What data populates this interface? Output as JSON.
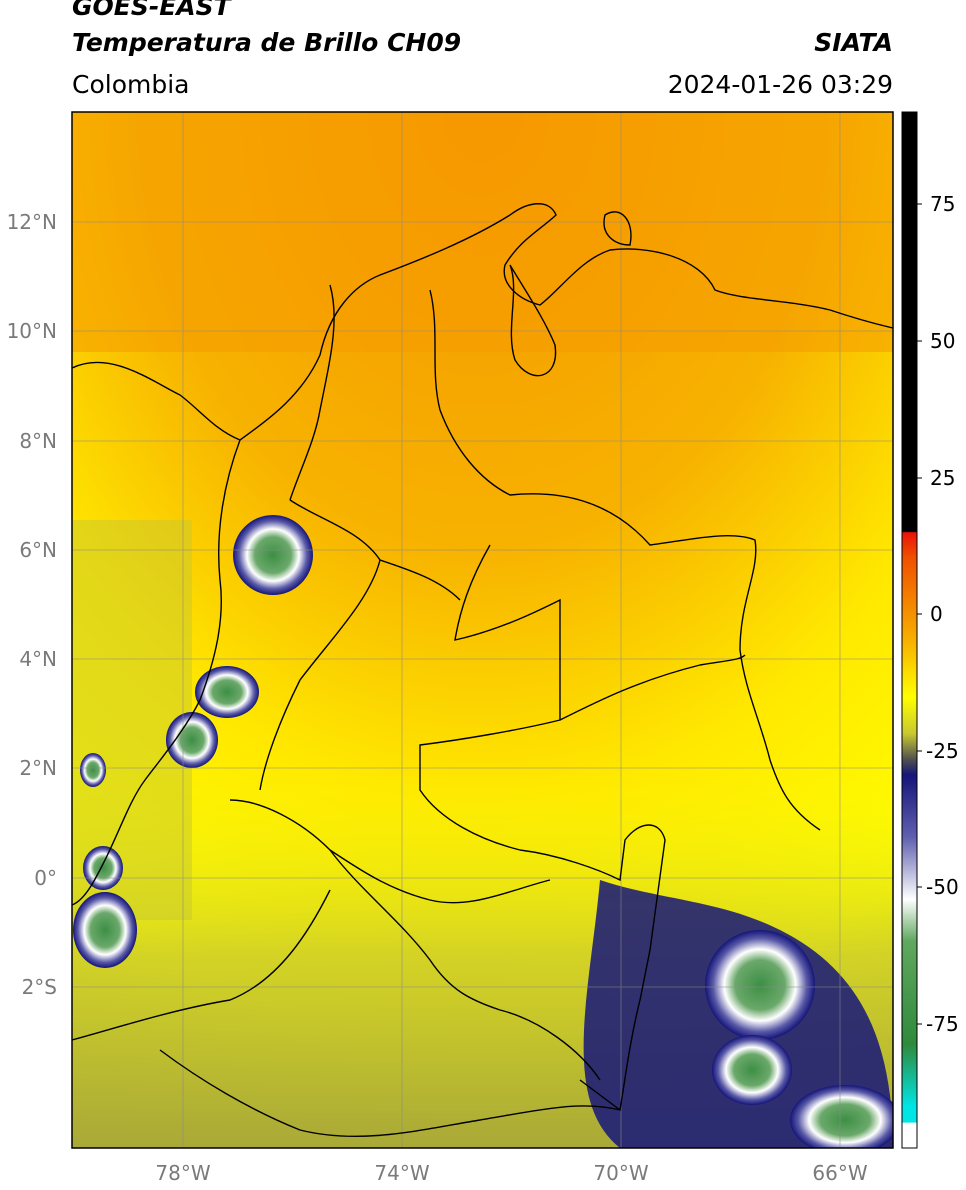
{
  "header": {
    "satellite": "GOES-EAST",
    "product": "Temperatura de Brillo CH09",
    "region": "Colombia",
    "source": "SIATA",
    "timestamp": "2024-01-26 03:29"
  },
  "map": {
    "lat_labels": [
      "12°N",
      "10°N",
      "8°N",
      "6°N",
      "4°N",
      "2°N",
      "0°",
      "2°S"
    ],
    "lon_labels": [
      "78°W",
      "74°W",
      "70°W",
      "66°W"
    ],
    "grid": true
  },
  "colorbar": {
    "ticks": [
      "75",
      "50",
      "25",
      "0",
      "-25",
      "-50",
      "-75"
    ],
    "colors": {
      "black": "#000000",
      "red": "#e8140a",
      "orange": "#f5a000",
      "yellow": "#ffff00",
      "olive": "#9a9a2a",
      "navy": "#15157a",
      "white": "#ffffff",
      "green": "#2f8a3c",
      "cyan": "#00e5e5"
    }
  }
}
